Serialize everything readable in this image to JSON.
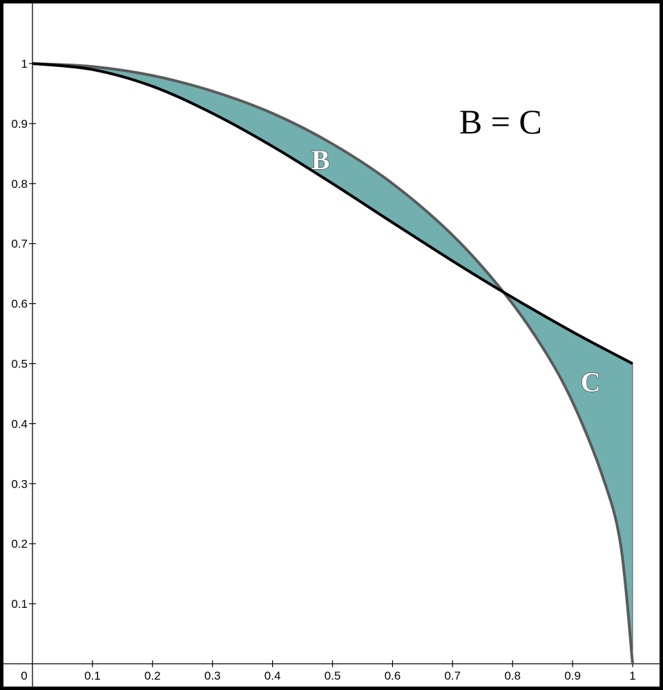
{
  "chart_data": {
    "type": "area",
    "xlim": [
      0,
      1
    ],
    "ylim": [
      0,
      1
    ],
    "grid": false,
    "x_ticks": [
      0.1,
      0.2,
      0.3,
      0.4,
      0.5,
      0.6,
      0.7,
      0.8,
      0.9,
      1
    ],
    "x_tick_labels": [
      "0.1",
      "0.2",
      "0.3",
      "0.4",
      "0.5",
      "0.6",
      "0.7",
      "0.8",
      "0.9",
      "1"
    ],
    "y_ticks": [
      0.1,
      0.2,
      0.3,
      0.4,
      0.5,
      0.6,
      0.7,
      0.8,
      0.9,
      1
    ],
    "y_tick_labels": [
      "0.1",
      "0.2",
      "0.3",
      "0.4",
      "0.5",
      "0.6",
      "0.7",
      "0.8",
      "0.9",
      "1"
    ],
    "origin_label": "0",
    "series": [
      {
        "color": "#5a5a5a",
        "x": [
          0,
          0.1,
          0.2,
          0.3,
          0.4,
          0.5,
          0.6,
          0.7,
          0.785,
          0.85,
          0.9,
          0.95,
          0.98,
          1.0
        ],
        "y": [
          1,
          0.995,
          0.98,
          0.954,
          0.917,
          0.866,
          0.8,
          0.714,
          0.619,
          0.527,
          0.436,
          0.312,
          0.199,
          0
        ]
      },
      {
        "color": "#000000",
        "x": [
          0,
          0.1,
          0.2,
          0.3,
          0.4,
          0.5,
          0.6,
          0.7,
          0.785,
          0.9,
          1.0
        ],
        "y": [
          1,
          0.99,
          0.962,
          0.917,
          0.862,
          0.8,
          0.735,
          0.671,
          0.619,
          0.553,
          0.5
        ]
      }
    ],
    "fill_color": "#72b0b0",
    "region_labels": [
      {
        "text": "B",
        "x": 0.48,
        "y": 0.84
      },
      {
        "text": "C",
        "x": 0.93,
        "y": 0.47
      }
    ],
    "annotation": {
      "text": "B = C",
      "x": 0.78,
      "y": 0.9
    }
  }
}
